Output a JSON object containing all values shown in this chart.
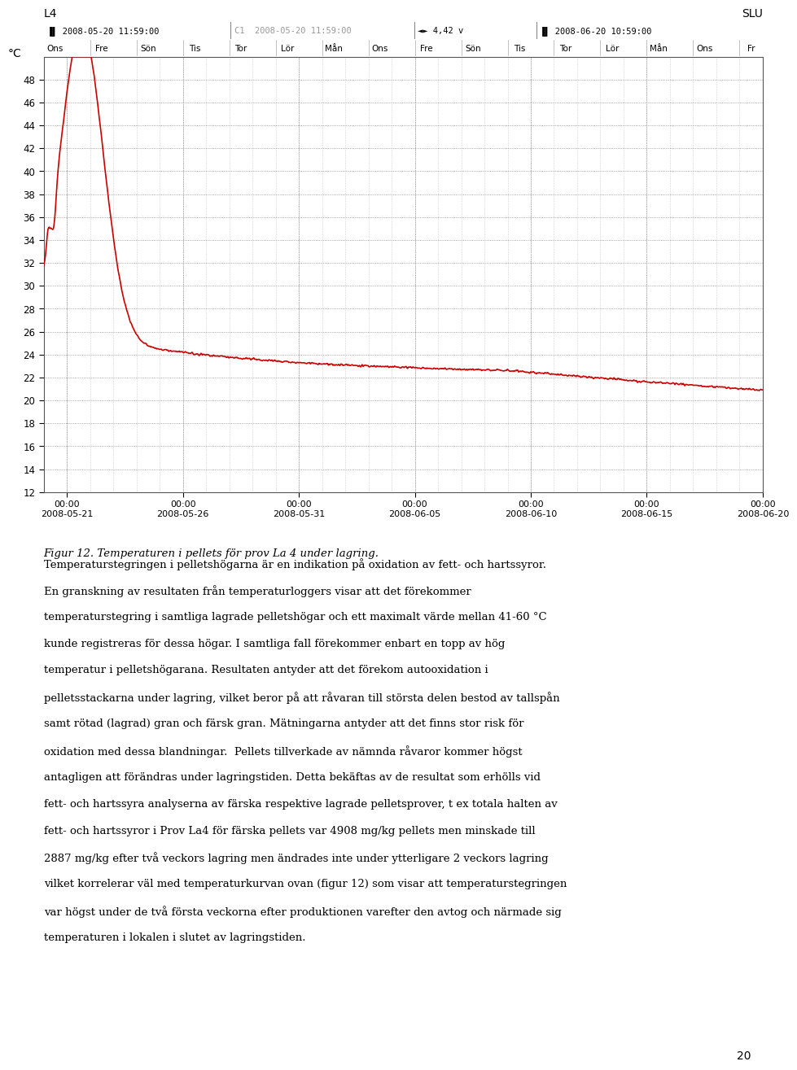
{
  "title_left": "L4",
  "title_right": "SLU",
  "ylabel": "°C",
  "ylim": [
    12,
    50
  ],
  "yticks": [
    12,
    14,
    16,
    18,
    20,
    22,
    24,
    26,
    28,
    30,
    32,
    34,
    36,
    38,
    40,
    42,
    44,
    46,
    48
  ],
  "x_tick_positions": [
    1,
    6,
    11,
    16,
    21,
    26,
    31
  ],
  "x_tick_labels": [
    "00:00\n2008-05-21",
    "00:00\n2008-05-26",
    "00:00\n2008-05-31",
    "00:00\n2008-06-05",
    "00:00\n2008-06-10",
    "00:00\n2008-06-15",
    "00:00\n2008-06-20"
  ],
  "day_labels": [
    "Ons",
    "Fre",
    "Sön",
    "Tis",
    "Tor",
    "Lör",
    "Mån",
    "Ons",
    "Fre",
    "Sön",
    "Tis",
    "Tor",
    "Lör",
    "Mån",
    "Ons",
    "Fr"
  ],
  "line_color": "#cc0000",
  "bg_color": "#ffffff",
  "grid_color": "#888888",
  "chart_bg": "#ffffff",
  "header_bg": "#d0d0d0",
  "days_bg": "#f0f0f0",
  "figure_caption": "Figur 12. Temperaturen i pellets för prov La 4 under lagring.",
  "body_text_lines": [
    "Temperaturstegringen i pelletshögarna är en indikation på oxidation av fett- och hartssyror.",
    "En granskning av resultaten från temperaturloggers visar att det förekommer",
    "temperaturstegring i samtliga lagrade pelletshögar och ett maximalt värde mellan 41-60 °C",
    "kunde registreras för dessa högar. I samtliga fall förekommer enbart en topp av hög",
    "temperatur i pelletshögarana. Resultaten antyder att det förekom autooxidation i",
    "pelletsstackarna under lagring, vilket beror på att råvaran till största delen bestod av tallspån",
    "samt rötad (lagrad) gran och färsk gran. Mätningarna antyder att det finns stor risk för",
    "oxidation med dessa blandningar.  Pellets tillverkade av nämnda råvaror kommer högst",
    "antagligen att förändras under lagringstiden. Detta bekäftas av de resultat som erhölls vid",
    "fett- och hartssyra analyserna av färska respektive lagrade pelletsprover, t ex totala halten av",
    "fett- och hartssyror i Prov La4 för färska pellets var 4908 mg/kg pellets men minskade till",
    "2887 mg/kg efter två veckors lagring men ändrades inte under ytterligare 2 veckors lagring",
    "vilket korrelerar väl med temperaturkurvan ovan (figur 12) som visar att temperaturstegringen",
    "var högst under de två första veckorna efter produktionen varefter den avtog och närmade sig",
    "temperaturen i lokalen i slutet av lagringstiden."
  ],
  "page_number": "20"
}
